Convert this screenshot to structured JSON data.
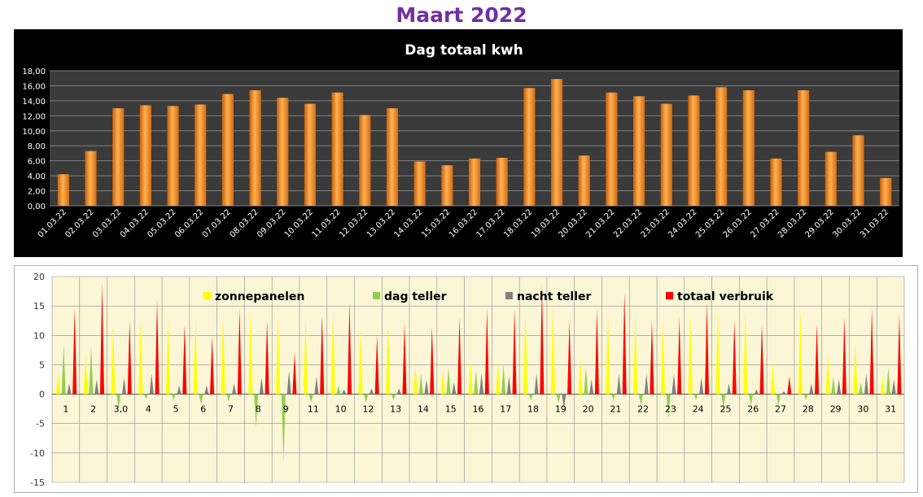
{
  "page": {
    "title": "Maart 2022"
  },
  "chart_data": [
    {
      "type": "bar",
      "title": "Dag totaal kwh",
      "categories": [
        "01.03.22",
        "02.03.22",
        "03.03.22",
        "04.03.22",
        "05.03.22",
        "06.03.22",
        "07.03.22",
        "08.03.22",
        "09.03.22",
        "10.03.22",
        "11.03.22",
        "12.03.22",
        "13.03.22",
        "14.03.22",
        "15.03.22",
        "16.03.22",
        "17.03.22",
        "18.03.22",
        "19.03.22",
        "20.03.22",
        "21.03.22",
        "22.03.22",
        "23.03.22",
        "24.03.22",
        "25.03.22",
        "26.03.22",
        "27.03.22",
        "28.03.22",
        "29.03.22",
        "30.03.22",
        "31.03.22"
      ],
      "values": [
        4.2,
        7.3,
        13.0,
        13.4,
        13.3,
        13.5,
        14.9,
        15.4,
        14.4,
        13.6,
        15.1,
        12.1,
        13.0,
        5.9,
        5.4,
        6.3,
        6.4,
        15.7,
        16.9,
        6.7,
        15.1,
        14.6,
        13.6,
        14.7,
        15.8,
        15.4,
        6.3,
        15.4,
        7.2,
        9.4,
        3.7
      ],
      "ylim": [
        0,
        18
      ],
      "yticks": [
        "0,00",
        "2,00",
        "4,00",
        "6,00",
        "8,00",
        "10,00",
        "12,00",
        "14,00",
        "16,00",
        "18,00"
      ],
      "grid": true,
      "colors": {
        "background": "#000000",
        "plot": "#3a3a3a",
        "bar": "#f58a1f",
        "text": "#ffffff",
        "grid": "#808080"
      }
    },
    {
      "type": "area",
      "categories": [
        "1",
        "2",
        "3,0",
        "4",
        "5",
        "6",
        "7",
        "8",
        "9",
        "11",
        "10",
        "12",
        "13",
        "14",
        "15",
        "16",
        "17",
        "18",
        "19",
        "20",
        "21",
        "22",
        "23",
        "24",
        "25",
        "26",
        "27",
        "28",
        "29",
        "30",
        "31"
      ],
      "series": [
        {
          "name": "zonnepanelen",
          "color": "#ffff00",
          "values": [
            3.5,
            6.8,
            12.0,
            12.5,
            12.5,
            12.8,
            14.0,
            14.5,
            13.5,
            12.8,
            14.2,
            11.5,
            12.0,
            5.0,
            4.2,
            5.8,
            5.5,
            15.0,
            15.8,
            6.0,
            14.0,
            13.8,
            12.5,
            13.5,
            14.8,
            14.5,
            5.5,
            14.5,
            6.8,
            8.8,
            3.0
          ]
        },
        {
          "name": "dag teller",
          "color": "#92d050",
          "values": [
            8.5,
            8.2,
            -2.5,
            -0.8,
            -1.0,
            -1.8,
            -1.2,
            -5.5,
            -11.5,
            -1.5,
            1.5,
            -1.5,
            -1.0,
            3.5,
            4.5,
            4.0,
            5.0,
            -1.0,
            -1.5,
            4.5,
            -1.0,
            -2.0,
            -4.0,
            -1.0,
            -2.5,
            -2.0,
            -2.0,
            -1.0,
            3.0,
            2.0,
            4.5
          ]
        },
        {
          "name": "nacht teller",
          "color": "#808080",
          "values": [
            1.8,
            2.5,
            2.8,
            3.5,
            1.5,
            1.5,
            1.8,
            2.8,
            4.0,
            3.0,
            0.8,
            1.0,
            1.0,
            2.5,
            2.0,
            3.5,
            3.0,
            3.5,
            -2.5,
            2.5,
            3.5,
            3.5,
            3.5,
            2.8,
            1.8,
            0.8,
            0.5,
            1.8,
            2.5,
            3.5,
            2.5
          ]
        },
        {
          "name": "totaal verbruik",
          "color": "#ff0000",
          "values": [
            14.5,
            18.8,
            12.5,
            16.0,
            11.8,
            9.8,
            14.5,
            12.5,
            7.0,
            13.5,
            15.5,
            10.0,
            12.0,
            11.5,
            13.0,
            14.5,
            14.5,
            18.5,
            12.5,
            14.5,
            17.5,
            12.5,
            13.0,
            15.5,
            12.5,
            12.0,
            3.0,
            12.0,
            13.0,
            14.5,
            13.5
          ]
        }
      ],
      "ylim": [
        -15,
        20
      ],
      "yticks": [
        "20",
        "15",
        "10",
        "5",
        "0",
        "-5",
        "-10",
        "-15"
      ],
      "legend": "top",
      "grid": true,
      "colors": {
        "plot": "#fbf6d6",
        "grid": "#8c8c8c"
      }
    }
  ]
}
